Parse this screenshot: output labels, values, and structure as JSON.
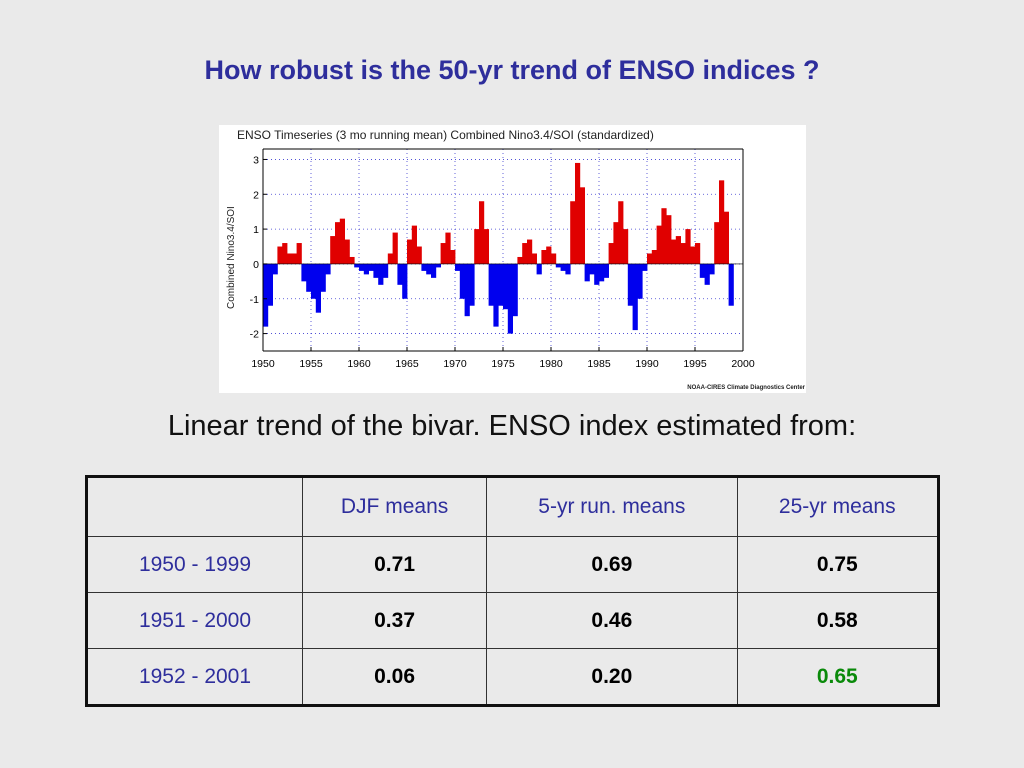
{
  "slide": {
    "title": "How robust is the 50-yr trend of  ENSO indices ?",
    "subtitle": "Linear trend of the bivar. ENSO index estimated from:"
  },
  "chart_data": {
    "type": "bar",
    "title": "ENSO Timeseries (3 mo running mean) Combined Nino3.4/SOI (standardized)",
    "ylabel": "Combined Nino3.4/SOI",
    "xlabel": "",
    "credit": "NOAA-CIRES Climate Diagnostics Center",
    "xlim": [
      1950,
      2000
    ],
    "ylim": [
      -2.5,
      3.3
    ],
    "xticks": [
      "1950",
      "1955",
      "1960",
      "1965",
      "1970",
      "1975",
      "1980",
      "1985",
      "1990",
      "1995",
      "2000"
    ],
    "yticks": [
      "-2",
      "-1",
      "0",
      "1",
      "2",
      "3"
    ],
    "grid": true,
    "positive_color": "#e00000",
    "negative_color": "#0000ee",
    "x": [
      1950.0,
      1950.5,
      1951.0,
      1951.5,
      1952.0,
      1952.5,
      1953.0,
      1953.5,
      1954.0,
      1954.5,
      1955.0,
      1955.5,
      1956.0,
      1956.5,
      1957.0,
      1957.5,
      1958.0,
      1958.5,
      1959.0,
      1959.5,
      1960.0,
      1960.5,
      1961.0,
      1961.5,
      1962.0,
      1962.5,
      1963.0,
      1963.5,
      1964.0,
      1964.5,
      1965.0,
      1965.5,
      1966.0,
      1966.5,
      1967.0,
      1967.5,
      1968.0,
      1968.5,
      1969.0,
      1969.5,
      1970.0,
      1970.5,
      1971.0,
      1971.5,
      1972.0,
      1972.5,
      1973.0,
      1973.5,
      1974.0,
      1974.5,
      1975.0,
      1975.5,
      1976.0,
      1976.5,
      1977.0,
      1977.5,
      1978.0,
      1978.5,
      1979.0,
      1979.5,
      1980.0,
      1980.5,
      1981.0,
      1981.5,
      1982.0,
      1982.5,
      1983.0,
      1983.5,
      1984.0,
      1984.5,
      1985.0,
      1985.5,
      1986.0,
      1986.5,
      1987.0,
      1987.5,
      1988.0,
      1988.5,
      1989.0,
      1989.5,
      1990.0,
      1990.5,
      1991.0,
      1991.5,
      1992.0,
      1992.5,
      1993.0,
      1993.5,
      1994.0,
      1994.5,
      1995.0,
      1995.5,
      1996.0,
      1996.5,
      1997.0,
      1997.5,
      1998.0,
      1998.5
    ],
    "values": [
      -1.8,
      -1.2,
      -0.3,
      0.5,
      0.6,
      0.3,
      0.3,
      0.6,
      -0.5,
      -0.8,
      -1.0,
      -1.4,
      -0.8,
      -0.3,
      0.8,
      1.2,
      1.3,
      0.7,
      0.2,
      -0.1,
      -0.2,
      -0.3,
      -0.2,
      -0.4,
      -0.6,
      -0.4,
      0.3,
      0.9,
      -0.6,
      -1.0,
      0.7,
      1.1,
      0.5,
      -0.2,
      -0.3,
      -0.4,
      -0.1,
      0.6,
      0.9,
      0.4,
      -0.2,
      -1.0,
      -1.5,
      -1.2,
      1.0,
      1.8,
      1.0,
      -1.2,
      -1.8,
      -1.2,
      -1.3,
      -2.0,
      -1.5,
      0.2,
      0.6,
      0.7,
      0.3,
      -0.3,
      0.4,
      0.5,
      0.3,
      -0.1,
      -0.2,
      -0.3,
      1.8,
      2.9,
      2.2,
      -0.5,
      -0.3,
      -0.6,
      -0.5,
      -0.4,
      0.6,
      1.2,
      1.8,
      1.0,
      -1.2,
      -1.9,
      -1.0,
      -0.2,
      0.3,
      0.4,
      1.1,
      1.6,
      1.4,
      0.7,
      0.8,
      0.6,
      1.0,
      0.5,
      0.6,
      -0.4,
      -0.6,
      -0.3,
      1.2,
      2.4,
      1.5,
      -1.2
    ]
  },
  "table": {
    "headers": [
      "",
      "DJF means",
      "5-yr run. means",
      "25-yr means"
    ],
    "rows": [
      {
        "label": "1950 - 1999",
        "values": [
          "0.71",
          "0.69",
          "0.75"
        ]
      },
      {
        "label": "1951 - 2000",
        "values": [
          "0.37",
          "0.46",
          "0.58"
        ]
      },
      {
        "label": "1952 - 2001",
        "values": [
          "0.06",
          "0.20",
          "0.65"
        ]
      }
    ],
    "highlight_color": "#0a8a0a"
  }
}
